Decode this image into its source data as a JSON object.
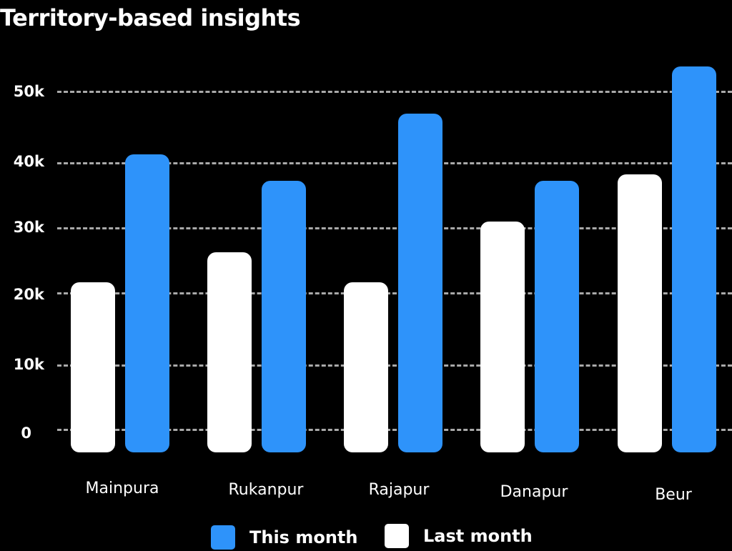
{
  "chart_data": {
    "type": "bar",
    "title": "Territory-based insights",
    "xlabel": "",
    "ylabel": "",
    "categories": [
      "Mainpura",
      "Rukanpur",
      "Rajapur",
      "Danapur",
      "Beur"
    ],
    "series": [
      {
        "name": "Last month",
        "color": "#ffffff",
        "values": [
          22000,
          26500,
          22000,
          31000,
          38000
        ]
      },
      {
        "name": "This month",
        "color": "#2e93fa",
        "values": [
          41000,
          37000,
          47000,
          37000,
          54000
        ]
      }
    ],
    "yticks": [
      "0",
      "10k",
      "20k",
      "30k",
      "40k",
      "50k"
    ],
    "ylim": [
      0,
      55000
    ],
    "grid": true,
    "legend_position": "bottom"
  },
  "labels": {
    "title": "Territory-based insights",
    "yticks": [
      "0",
      "10k",
      "20k",
      "30k",
      "40k",
      "50k"
    ],
    "categories": [
      "Mainpura",
      "Rukanpur",
      "Rajapur",
      "Danapur",
      "Beur"
    ],
    "legend": {
      "this_month": "This month",
      "last_month": "Last month"
    }
  }
}
